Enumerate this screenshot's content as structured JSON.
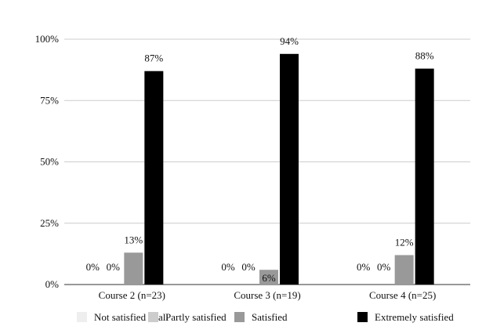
{
  "chart_data": {
    "type": "bar",
    "categories": [
      "Course 2 (n=23)",
      "Course 3 (n=19)",
      "Course 4 (n=25)"
    ],
    "series": [
      {
        "name": "Not satisfied at all",
        "values": [
          0,
          0,
          0
        ],
        "labels": [
          "0%",
          "0%",
          "0%"
        ],
        "color": "#eeeeee"
      },
      {
        "name": "Partly satisfied",
        "values": [
          0,
          0,
          0
        ],
        "labels": [
          "0%",
          "0%",
          "0%"
        ],
        "color": "#cccccc"
      },
      {
        "name": "Satisfied",
        "values": [
          13,
          6,
          12
        ],
        "labels": [
          "13%",
          "6%",
          "12%"
        ],
        "color": "#999999"
      },
      {
        "name": "Extremely satisfied",
        "values": [
          87,
          94,
          88
        ],
        "labels": [
          "87%",
          "94%",
          "88%"
        ],
        "color": "#000000"
      }
    ],
    "yticks": [
      "0%",
      "25%",
      "50%",
      "75%",
      "100%"
    ],
    "ylim": [
      0,
      100
    ],
    "grid": true,
    "legend_position": "bottom",
    "title": "",
    "xlabel": "",
    "ylabel": ""
  }
}
